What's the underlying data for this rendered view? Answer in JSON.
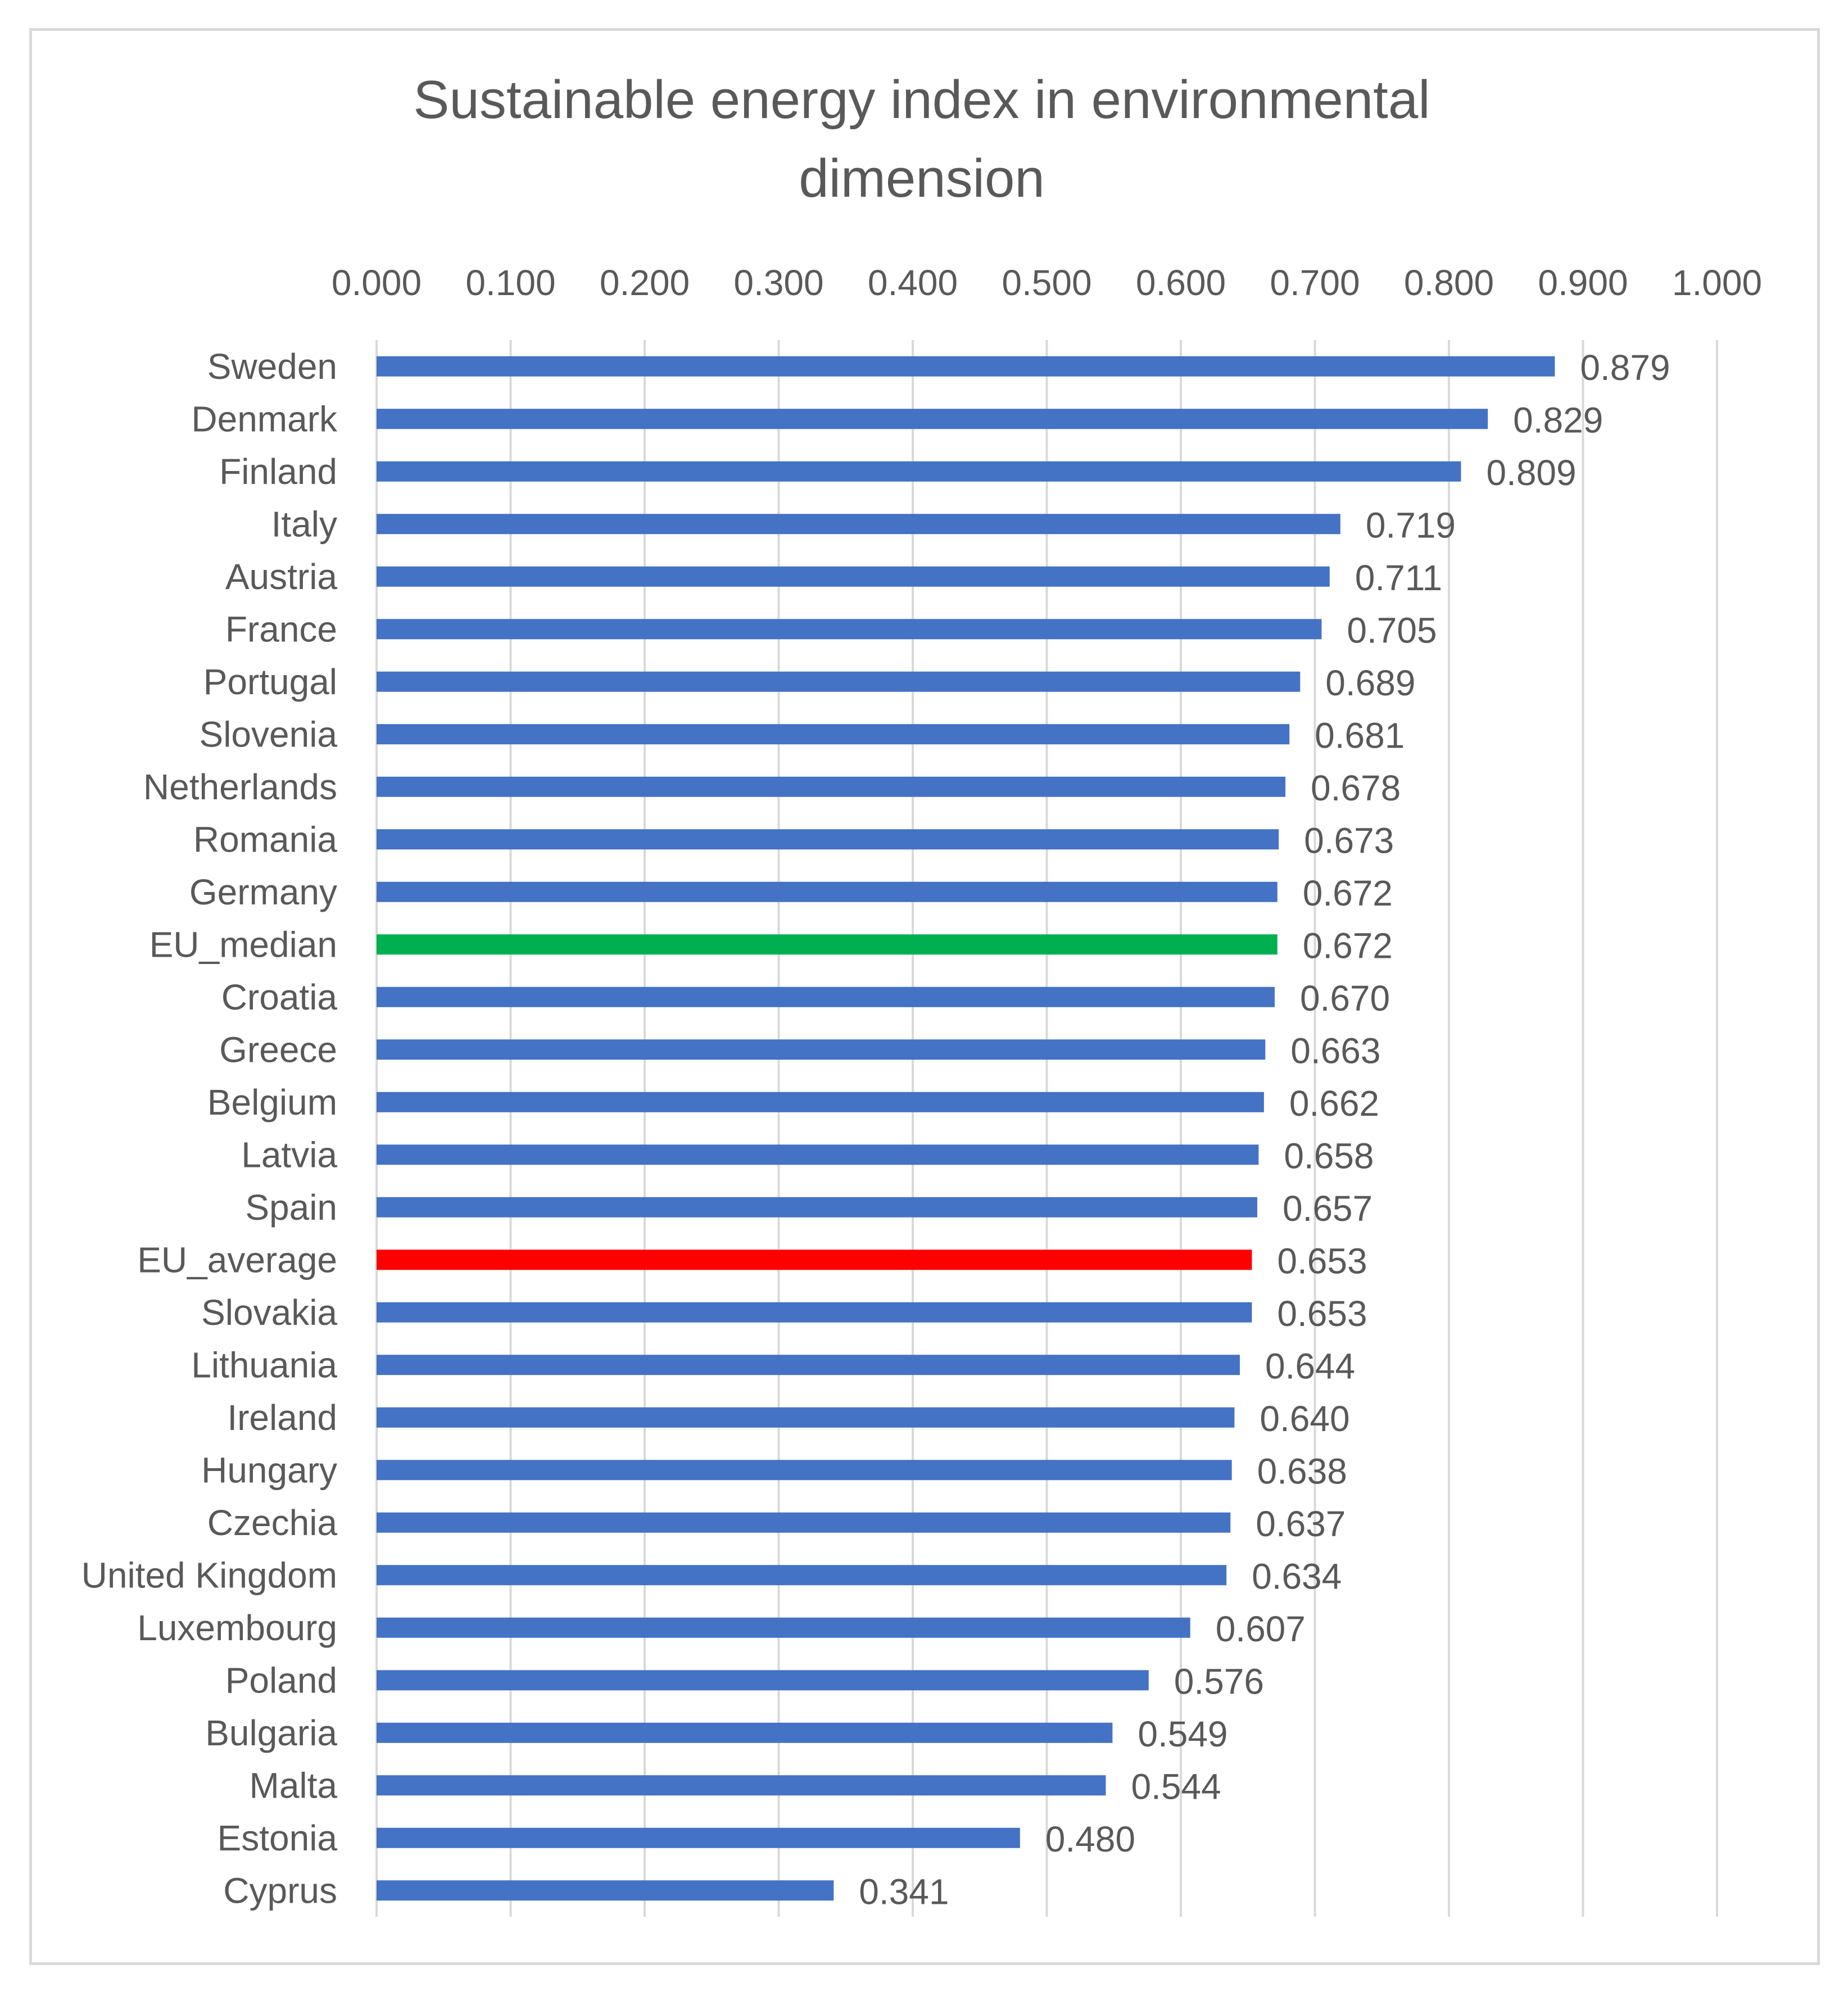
{
  "chart_data": {
    "type": "bar",
    "orientation": "horizontal",
    "title_lines": [
      "Sustainable energy index in environmental",
      "dimension"
    ],
    "xlim": [
      0,
      1
    ],
    "tick_step": 0.1,
    "tick_labels": [
      "0.000",
      "0.100",
      "0.200",
      "0.300",
      "0.400",
      "0.500",
      "0.600",
      "0.700",
      "0.800",
      "0.900",
      "1.000"
    ],
    "axis_position": "top",
    "grid": true,
    "legend": "none",
    "default_color": "#4472c4",
    "categories": [
      "Sweden",
      "Denmark",
      "Finland",
      "Italy",
      "Austria",
      "France",
      "Portugal",
      "Slovenia",
      "Netherlands",
      "Romania",
      "Germany",
      "EU_median",
      "Croatia",
      "Greece",
      "Belgium",
      "Latvia",
      "Spain",
      "EU_average",
      "Slovakia",
      "Lithuania",
      "Ireland",
      "Hungary",
      "Czechia",
      "United Kingdom",
      "Luxembourg",
      "Poland",
      "Bulgaria",
      "Malta",
      "Estonia",
      "Cyprus"
    ],
    "values": [
      0.879,
      0.829,
      0.809,
      0.719,
      0.711,
      0.705,
      0.689,
      0.681,
      0.678,
      0.673,
      0.672,
      0.672,
      0.67,
      0.663,
      0.662,
      0.658,
      0.657,
      0.653,
      0.653,
      0.644,
      0.64,
      0.638,
      0.637,
      0.634,
      0.607,
      0.576,
      0.549,
      0.544,
      0.48,
      0.341
    ],
    "value_labels": [
      "0.879",
      "0.829",
      "0.809",
      "0.719",
      "0.711",
      "0.705",
      "0.689",
      "0.681",
      "0.678",
      "0.673",
      "0.672",
      "0.672",
      "0.670",
      "0.663",
      "0.662",
      "0.658",
      "0.657",
      "0.653",
      "0.653",
      "0.644",
      "0.640",
      "0.638",
      "0.637",
      "0.634",
      "0.607",
      "0.576",
      "0.549",
      "0.544",
      "0.480",
      "0.341"
    ],
    "highlight_colors": {
      "EU_median": "#00b050",
      "EU_average": "#ff0000"
    }
  }
}
